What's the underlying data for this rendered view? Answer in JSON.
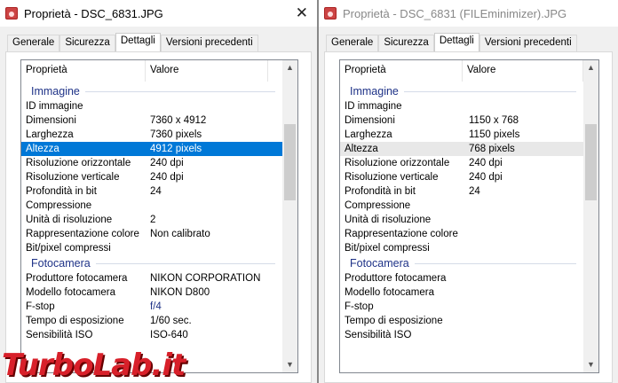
{
  "left": {
    "title": "Proprietà - DSC_6831.JPG",
    "tabs": [
      "Generale",
      "Sicurezza",
      "Dettagli",
      "Versioni precedenti"
    ],
    "columns": [
      "Proprietà",
      "Valore"
    ],
    "groups": [
      {
        "name": "Immagine",
        "rows": [
          [
            "ID immagine",
            ""
          ],
          [
            "Dimensioni",
            "7360 x 4912"
          ],
          [
            "Larghezza",
            "7360 pixels"
          ],
          [
            "Altezza",
            "4912 pixels"
          ],
          [
            "Risoluzione orizzontale",
            "240 dpi"
          ],
          [
            "Risoluzione verticale",
            "240 dpi"
          ],
          [
            "Profondità in bit",
            "24"
          ],
          [
            "Compressione",
            ""
          ],
          [
            "Unità di risoluzione",
            "2"
          ],
          [
            "Rappresentazione colore",
            "Non calibrato"
          ],
          [
            "Bit/pixel compressi",
            ""
          ]
        ]
      },
      {
        "name": "Fotocamera",
        "rows": [
          [
            "Produttore fotocamera",
            "NIKON CORPORATION"
          ],
          [
            "Modello fotocamera",
            "NIKON D800"
          ],
          [
            "F-stop",
            "f/4"
          ],
          [
            "Tempo di esposizione",
            "1/60 sec."
          ],
          [
            "Sensibilità ISO",
            "ISO-640"
          ]
        ]
      }
    ]
  },
  "right": {
    "title": "Proprietà - DSC_6831 (FILEminimizer).JPG",
    "tabs": [
      "Generale",
      "Sicurezza",
      "Dettagli",
      "Versioni precedenti"
    ],
    "columns": [
      "Proprietà",
      "Valore"
    ],
    "groups": [
      {
        "name": "Immagine",
        "rows": [
          [
            "ID immagine",
            ""
          ],
          [
            "Dimensioni",
            "1150 x 768"
          ],
          [
            "Larghezza",
            "1150 pixels"
          ],
          [
            "Altezza",
            "768 pixels"
          ],
          [
            "Risoluzione orizzontale",
            "240 dpi"
          ],
          [
            "Risoluzione verticale",
            "240 dpi"
          ],
          [
            "Profondità in bit",
            "24"
          ],
          [
            "Compressione",
            ""
          ],
          [
            "Unità di risoluzione",
            ""
          ],
          [
            "Rappresentazione colore",
            ""
          ],
          [
            "Bit/pixel compressi",
            ""
          ]
        ]
      },
      {
        "name": "Fotocamera",
        "rows": [
          [
            "Produttore fotocamera",
            ""
          ],
          [
            "Modello fotocamera",
            ""
          ],
          [
            "F-stop",
            ""
          ],
          [
            "Tempo di esposizione",
            ""
          ],
          [
            "Sensibilità ISO",
            ""
          ]
        ]
      }
    ]
  },
  "selected_row": "Altezza",
  "watermark": "TurboLab.it",
  "colors": {
    "selection": "#0078d7",
    "group": "#1e3287"
  }
}
